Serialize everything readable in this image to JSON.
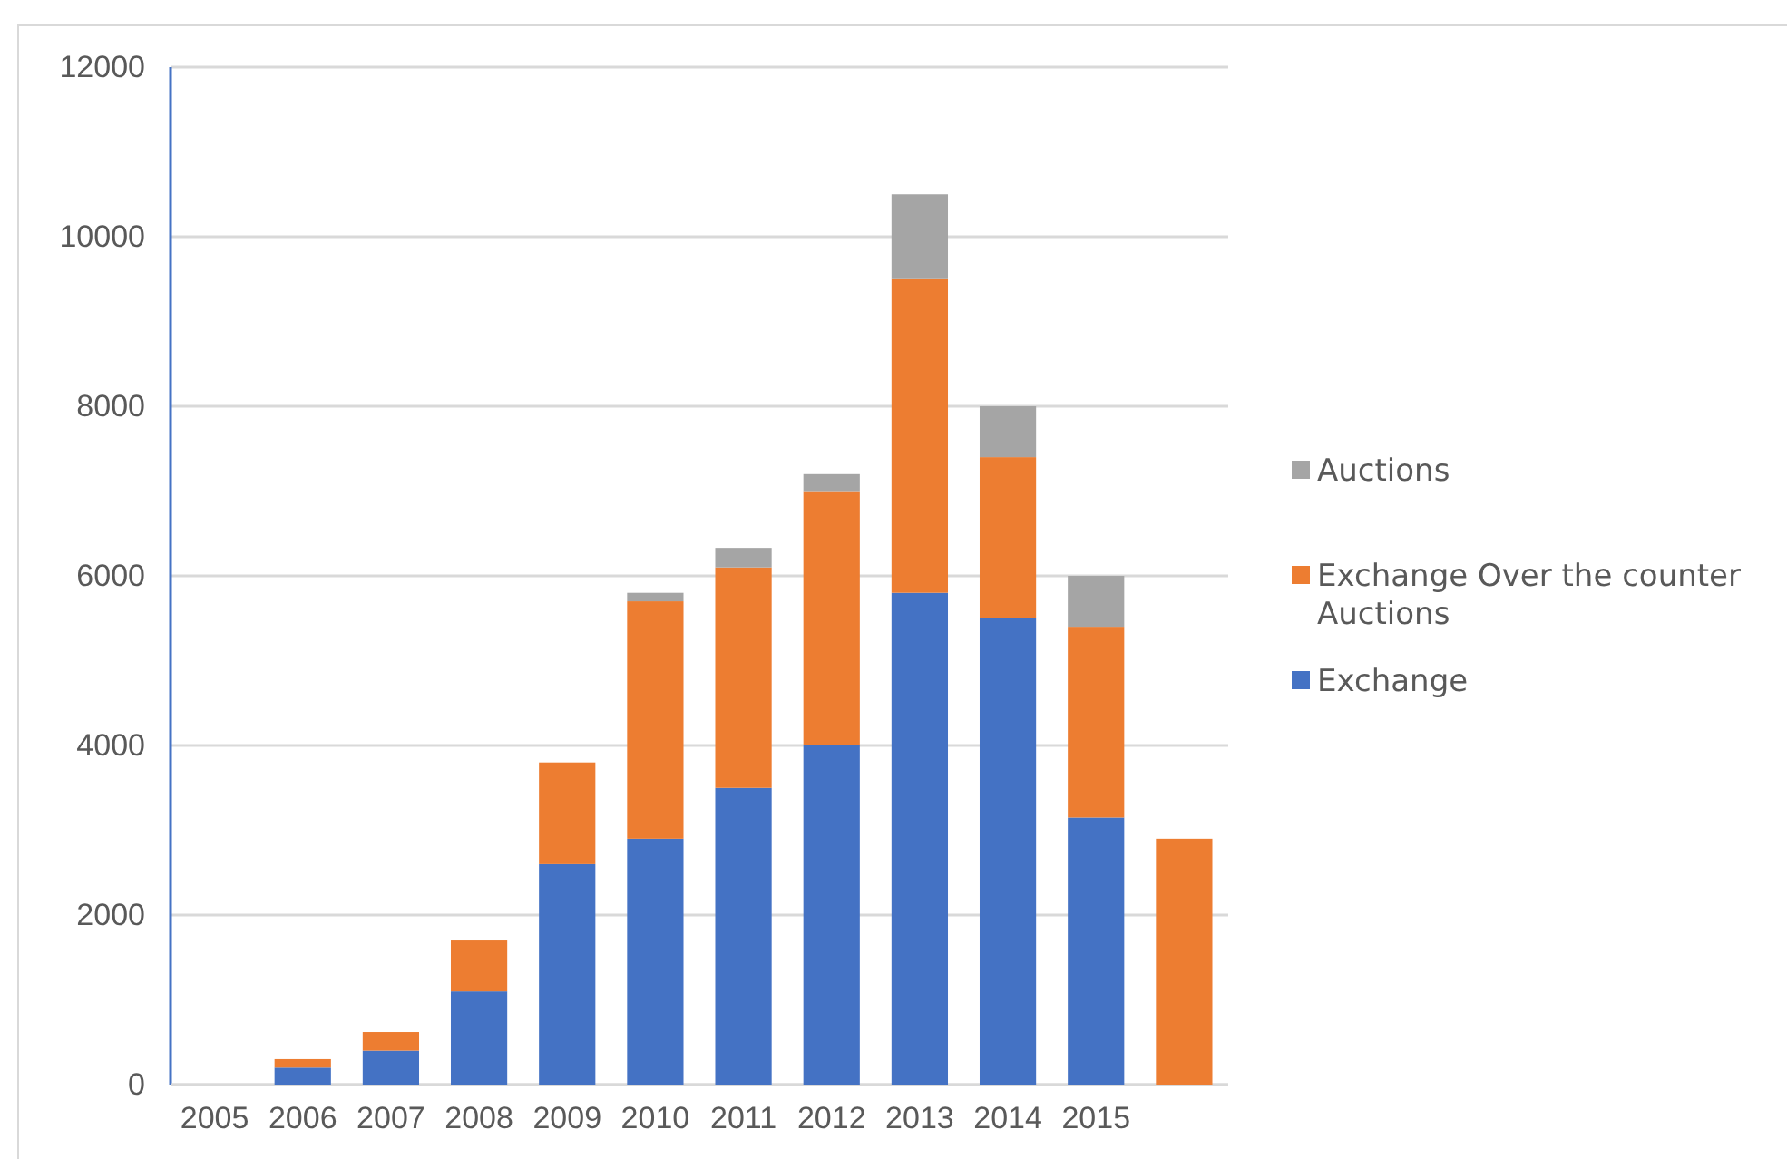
{
  "chart_data": {
    "type": "bar",
    "stacked": true,
    "categories": [
      "2005",
      "2006",
      "2007",
      "2008",
      "2009",
      "2010",
      "2011",
      "2012",
      "2013",
      "2014",
      "2015",
      null
    ],
    "series": [
      {
        "name": "Exchange",
        "color": "#4472c4",
        "values": [
          0,
          200,
          400,
          1100,
          2600,
          2900,
          3500,
          4000,
          5800,
          5500,
          3150,
          0
        ]
      },
      {
        "name": "Exchange Over the counter Auctions",
        "color": "#ed7d31",
        "values": [
          0,
          100,
          220,
          600,
          1200,
          2800,
          2600,
          3000,
          3700,
          1900,
          2250,
          2900
        ]
      },
      {
        "name": "Auctions",
        "color": "#a5a5a5",
        "values": [
          0,
          0,
          0,
          0,
          0,
          100,
          230,
          200,
          1000,
          600,
          600,
          0
        ]
      }
    ],
    "ylim": [
      0,
      12000
    ],
    "yticks": [
      0,
      2000,
      4000,
      6000,
      8000,
      10000,
      12000
    ],
    "grid": "y",
    "legend": "right"
  }
}
